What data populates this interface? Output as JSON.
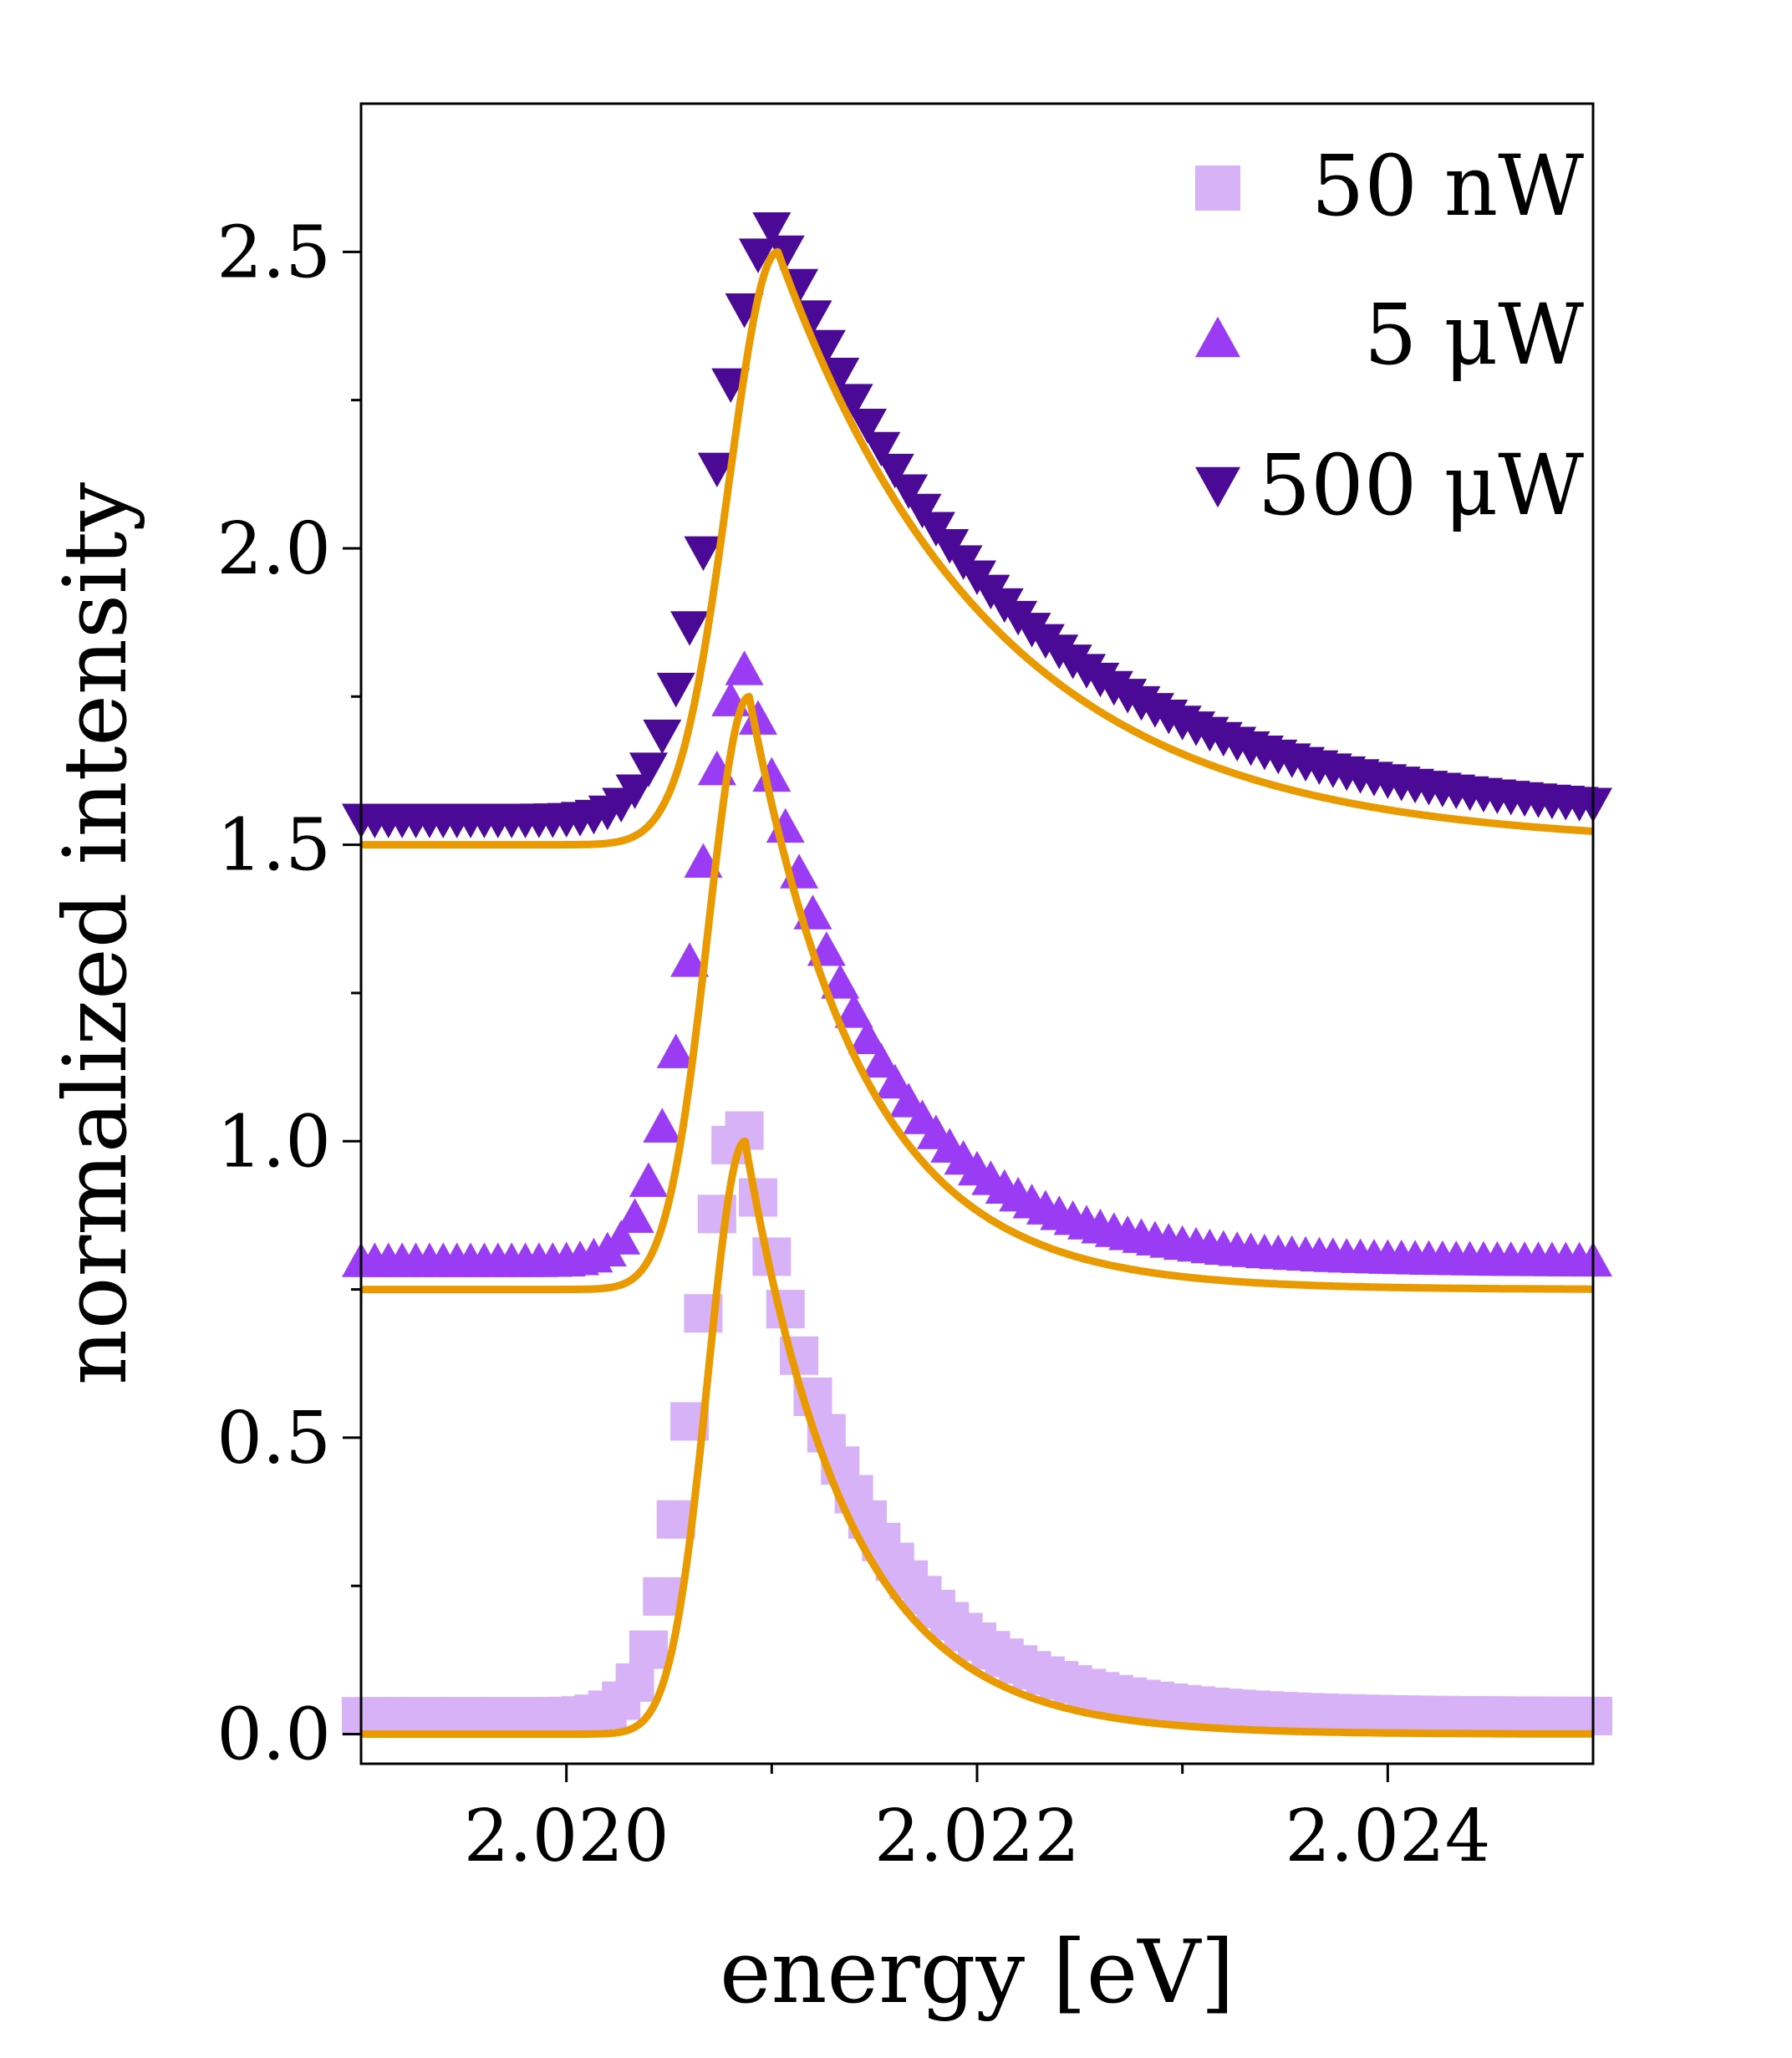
{
  "chart_data": {
    "type": "scatter",
    "title": "",
    "xlabel": "energy [eV]",
    "ylabel": "normalized intensity",
    "xlim": [
      2.019,
      2.025
    ],
    "ylim": [
      -0.05,
      2.75
    ],
    "xticks": [
      2.02,
      2.022,
      2.024
    ],
    "xtick_labels": [
      "2.020",
      "2.022",
      "2.024"
    ],
    "yticks": [
      0.0,
      0.5,
      1.0,
      1.5,
      2.0,
      2.5
    ],
    "ytick_labels": [
      "0.0",
      "0.5",
      "1.0",
      "1.5",
      "2.0",
      "2.5"
    ],
    "grid": false,
    "legend": {
      "position": "top-right",
      "entries": [
        "50 nW",
        "5 μW",
        "500 μW"
      ]
    },
    "series": [
      {
        "name": "50 nW",
        "marker": "square",
        "color": "#d7b2f7",
        "offset": 0.0,
        "peak": {
          "center": 2.02086,
          "sigma": 0.00022,
          "gamma": 0.00055,
          "amplitude": 1.0
        },
        "background": 0.03,
        "fit": {
          "center": 2.02087,
          "sigma": 0.00018,
          "gamma": 0.0005,
          "amplitude": 1.0,
          "background": 0.0,
          "color": "#e89a00"
        }
      },
      {
        "name": "5 μW",
        "marker": "triangle-up",
        "color": "#9b3cf5",
        "offset": 0.75,
        "peak": {
          "center": 2.02088,
          "sigma": 0.00024,
          "gamma": 0.0006,
          "amplitude": 1.0
        },
        "background": 0.05,
        "fit": {
          "center": 2.02089,
          "sigma": 0.0002,
          "gamma": 0.00055,
          "amplitude": 1.0,
          "background": 0.0,
          "color": "#e89a00"
        }
      },
      {
        "name": "500 μW",
        "marker": "triangle-down",
        "color": "#4a0a96",
        "offset": 1.5,
        "peak": {
          "center": 2.02102,
          "sigma": 0.00028,
          "gamma": 0.0011,
          "amplitude": 1.0
        },
        "background": 0.04,
        "fit": {
          "center": 2.02103,
          "sigma": 0.00024,
          "gamma": 0.00105,
          "amplitude": 1.0,
          "background": 0.0,
          "color": "#e89a00"
        }
      }
    ]
  }
}
